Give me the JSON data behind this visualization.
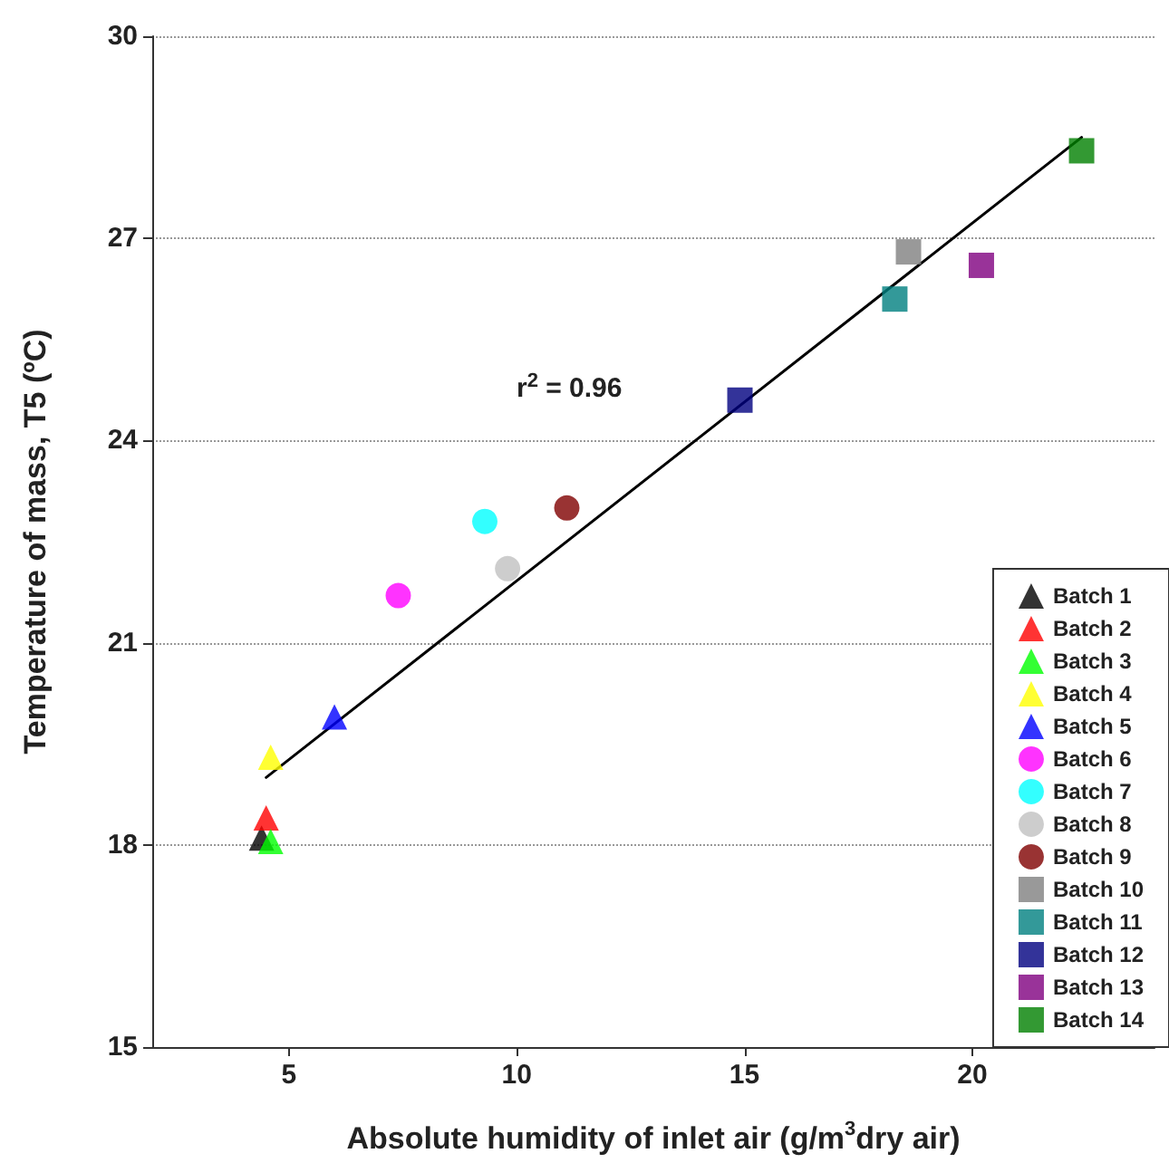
{
  "chart_data": {
    "type": "scatter",
    "xlabel": "Absolute humidity of inlet air (g/m$^{3}$dry air)",
    "ylabel": "Temperature of mass, T5 (ºC)",
    "annotations": [
      "r$^{2}$ = 0.96"
    ],
    "xlim": [
      2,
      24
    ],
    "xticks": [
      5,
      10,
      15,
      20
    ],
    "ylim": [
      15,
      30
    ],
    "yticks": [
      15,
      18,
      21,
      24,
      27,
      30
    ],
    "grid": "y",
    "legend": "bottom right",
    "series": [
      {
        "name": "Batch 1",
        "color": "#000000",
        "marker": "triangle",
        "x": [
          4.4
        ],
        "values": [
          18.1
        ]
      },
      {
        "name": "Batch 2",
        "color": "#ff0000",
        "marker": "triangle",
        "x": [
          4.5
        ],
        "values": [
          18.4
        ]
      },
      {
        "name": "Batch 3",
        "color": "#00ff00",
        "marker": "triangle",
        "x": [
          4.6
        ],
        "values": [
          18.05
        ]
      },
      {
        "name": "Batch 4",
        "color": "#ffff00",
        "marker": "triangle",
        "x": [
          4.6
        ],
        "values": [
          19.3
        ]
      },
      {
        "name": "Batch 5",
        "color": "#0000ff",
        "marker": "triangle",
        "x": [
          6.0
        ],
        "values": [
          19.9
        ]
      },
      {
        "name": "Batch 6",
        "color": "#ff00ff",
        "marker": "circle",
        "x": [
          7.4
        ],
        "values": [
          21.7
        ]
      },
      {
        "name": "Batch 7",
        "color": "#00ffff",
        "marker": "circle",
        "x": [
          9.3
        ],
        "values": [
          22.8
        ]
      },
      {
        "name": "Batch 8",
        "color": "#c0c0c0",
        "marker": "circle",
        "x": [
          9.8
        ],
        "values": [
          22.1
        ]
      },
      {
        "name": "Batch 9",
        "color": "#800000",
        "marker": "circle",
        "x": [
          11.1
        ],
        "values": [
          23.0
        ]
      },
      {
        "name": "Batch 10",
        "color": "#808080",
        "marker": "square",
        "x": [
          18.6
        ],
        "values": [
          26.8
        ]
      },
      {
        "name": "Batch 11",
        "color": "#008080",
        "marker": "square",
        "x": [
          18.3
        ],
        "values": [
          26.1
        ]
      },
      {
        "name": "Batch 12",
        "color": "#000080",
        "marker": "square",
        "x": [
          14.9
        ],
        "values": [
          24.6
        ]
      },
      {
        "name": "Batch 13",
        "color": "#800080",
        "marker": "square",
        "x": [
          20.2
        ],
        "values": [
          26.6
        ]
      },
      {
        "name": "Batch 14",
        "color": "#008000",
        "marker": "square",
        "x": [
          22.4
        ],
        "values": [
          28.3
        ]
      },
      {
        "type": "line",
        "color": "#000000",
        "marker": "none",
        "line_style": "solid",
        "x": [
          4.5,
          22.4
        ],
        "values": [
          19.0,
          28.5
        ]
      }
    ]
  }
}
